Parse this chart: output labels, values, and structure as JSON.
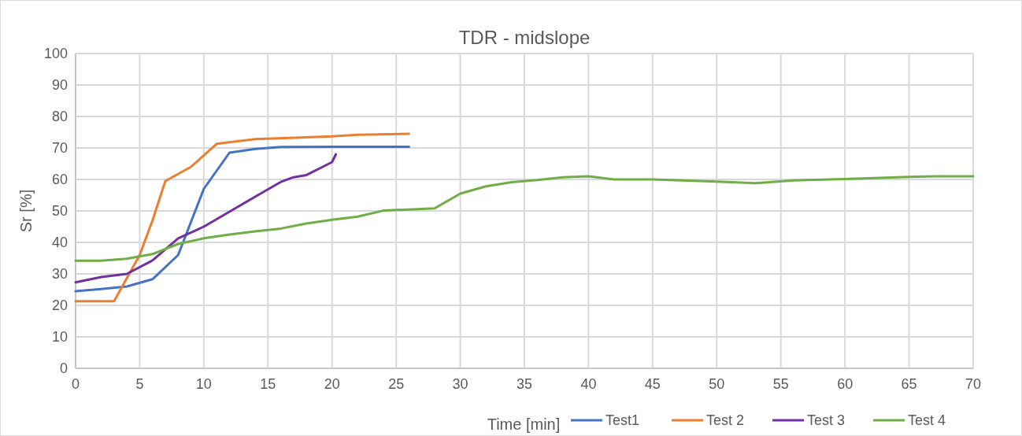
{
  "chart_data": {
    "type": "line",
    "title": "TDR - midslope",
    "xlabel": "Time [min]",
    "ylabel": "Sr [%]",
    "xlim": [
      0,
      70
    ],
    "xticks": [
      0,
      5,
      10,
      15,
      20,
      25,
      30,
      35,
      40,
      45,
      50,
      55,
      60,
      65,
      70
    ],
    "ylim": [
      0,
      100
    ],
    "yticks": [
      0,
      10,
      20,
      30,
      40,
      50,
      60,
      70,
      80,
      90,
      100
    ],
    "grid": true,
    "legend": "bottom",
    "marker": "none",
    "line_style": "solid",
    "series": [
      {
        "name": "Test1",
        "color": "#4472c4",
        "x": [
          0,
          2,
          4,
          6,
          8,
          10,
          12,
          14,
          16,
          20,
          26
        ],
        "values": [
          24.5,
          25.2,
          26,
          28.3,
          36,
          57,
          68.5,
          69.7,
          70.3,
          70.4,
          70.4
        ]
      },
      {
        "name": "Test 2",
        "color": "#ed7d31",
        "x": [
          0,
          3,
          5,
          6,
          7,
          9,
          11,
          14,
          18,
          20,
          22,
          26
        ],
        "values": [
          21.3,
          21.3,
          36,
          47,
          59.5,
          64,
          71.3,
          72.8,
          73.4,
          73.7,
          74.2,
          74.5
        ]
      },
      {
        "name": "Test 3",
        "color": "#7030a0",
        "x": [
          0,
          2,
          4,
          6,
          8,
          10,
          14,
          16,
          17,
          18,
          20,
          20.3
        ],
        "values": [
          27.3,
          29,
          30,
          34.3,
          41.3,
          45,
          54.5,
          59.2,
          60.7,
          61.4,
          65.5,
          68
        ]
      },
      {
        "name": "Test 4",
        "color": "#70ad47",
        "x": [
          0,
          2,
          4,
          6,
          8,
          10,
          12,
          14,
          16,
          18,
          20,
          22,
          24,
          28,
          30,
          32,
          34,
          36,
          38,
          40,
          42,
          45,
          50,
          53,
          56,
          60,
          65,
          67,
          70
        ],
        "values": [
          34.2,
          34.2,
          34.8,
          36.3,
          39.5,
          41.3,
          42.5,
          43.5,
          44.4,
          46,
          47.2,
          48.2,
          50.1,
          50.8,
          55.5,
          57.8,
          59.1,
          59.8,
          60.7,
          61,
          60,
          60,
          59.3,
          58.8,
          59.7,
          60.1,
          60.8,
          61,
          61
        ]
      }
    ]
  }
}
